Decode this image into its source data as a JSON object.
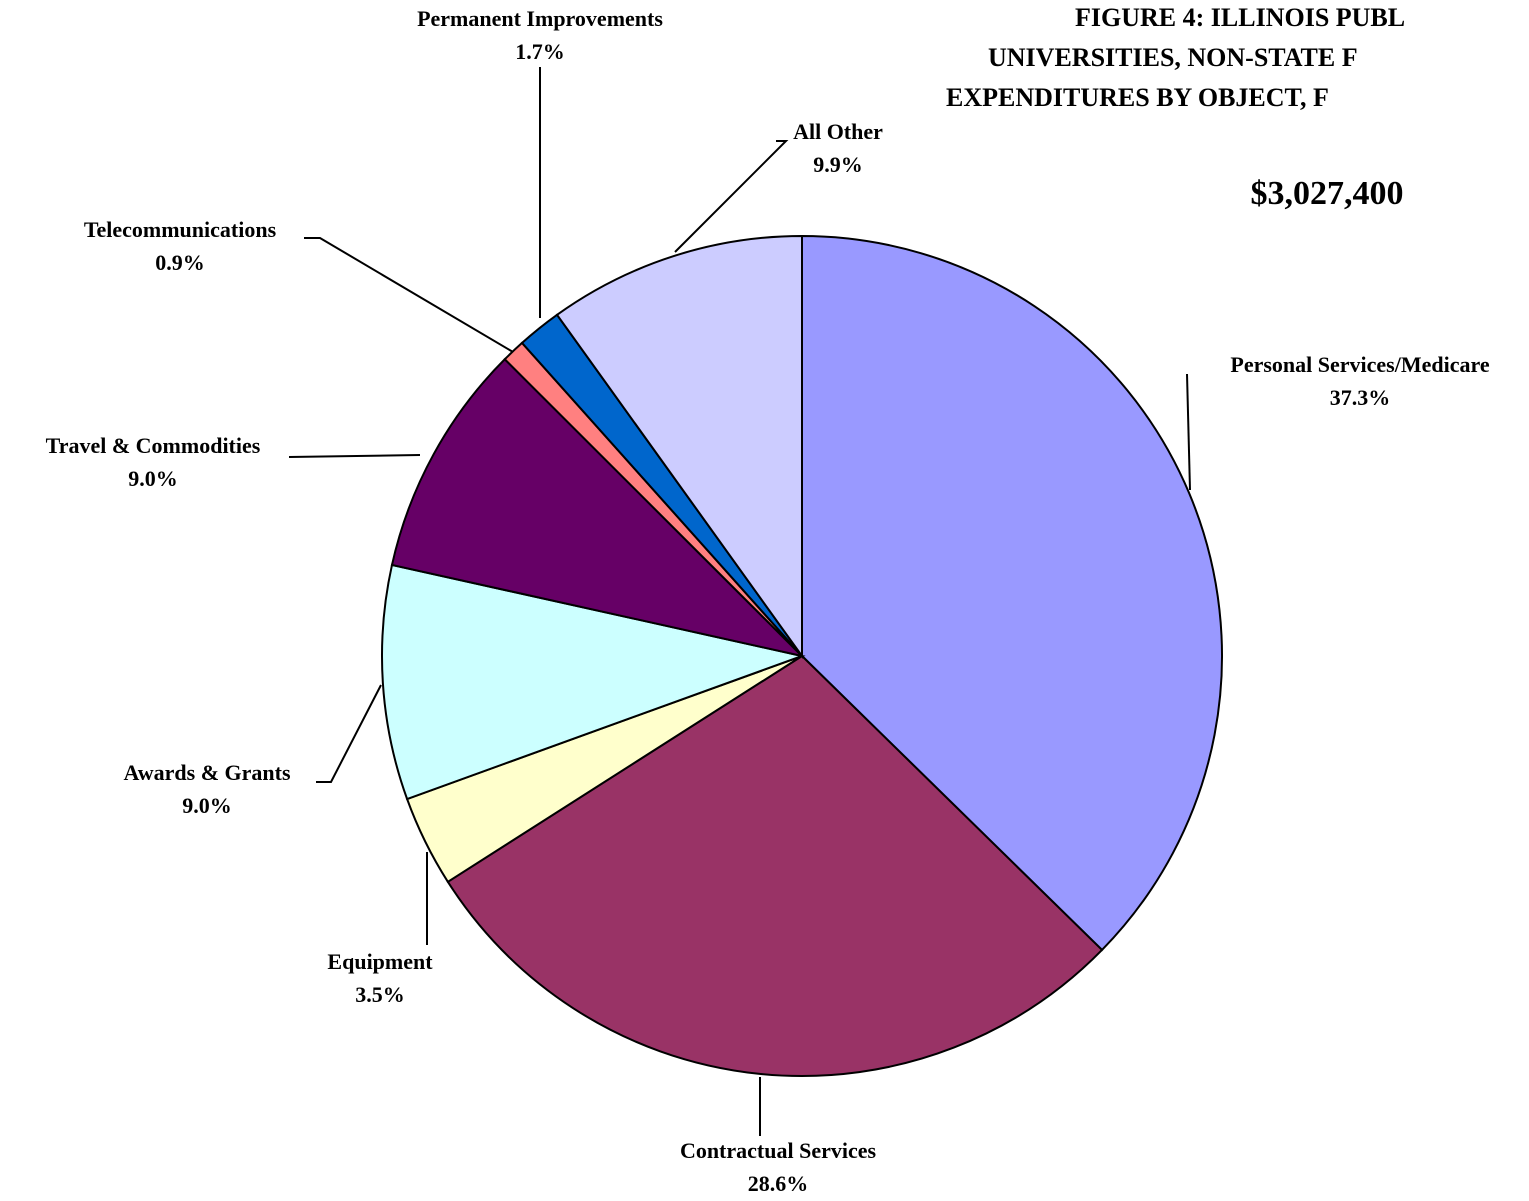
{
  "chart_data": {
    "type": "pie",
    "title": [
      "FIGURE 4: ILLINOIS PUBL",
      "UNIVERSITIES, NON-STATE F",
      "EXPENDITURES BY OBJECT, F"
    ],
    "subtitle": "$3,027,400",
    "categories": [
      "Personal Services/Medicare",
      "Contractual Services",
      "Equipment",
      "Awards & Grants",
      "Travel & Commodities",
      "Telecommunications",
      "Permanent Improvements",
      "All Other"
    ],
    "values": [
      37.3,
      28.6,
      3.5,
      9.0,
      9.0,
      0.9,
      1.7,
      9.9
    ],
    "value_labels": [
      "37.3%",
      "28.6%",
      "3.5%",
      "9.0%",
      "9.0%",
      "0.9%",
      "1.7%",
      "9.9%"
    ],
    "colors": [
      "#9999ff",
      "#993366",
      "#ffffcc",
      "#ccffff",
      "#660066",
      "#ff8080",
      "#0066cc",
      "#ccccff"
    ]
  }
}
